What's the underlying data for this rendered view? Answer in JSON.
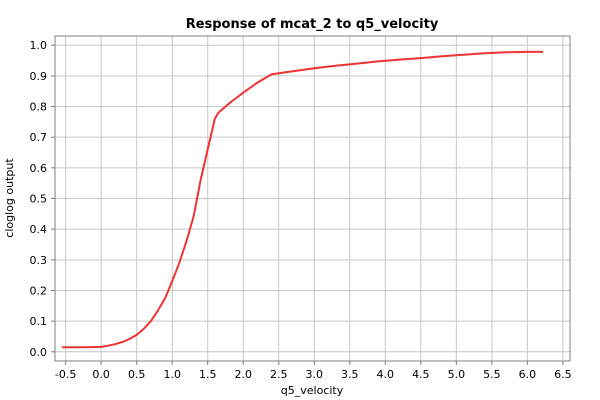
{
  "chart_data": {
    "type": "line",
    "title": "Response of mcat_2 to q5_velocity",
    "xlabel": "q5_velocity",
    "ylabel": "cloglog output",
    "xlim": [
      -0.65,
      6.6
    ],
    "ylim": [
      -0.03,
      1.03
    ],
    "xticks": [
      -0.5,
      0.0,
      0.5,
      1.0,
      1.5,
      2.0,
      2.5,
      3.0,
      3.5,
      4.0,
      4.5,
      5.0,
      5.5,
      6.0,
      6.5
    ],
    "yticks": [
      0.0,
      0.1,
      0.2,
      0.3,
      0.4,
      0.5,
      0.6,
      0.7,
      0.8,
      0.9,
      1.0
    ],
    "grid": true,
    "line_color": "#ee3333",
    "series": [
      {
        "x": [
          -0.55,
          -0.4,
          -0.2,
          0.0,
          0.1,
          0.2,
          0.3,
          0.4,
          0.5,
          0.6,
          0.7,
          0.8,
          0.9,
          1.0,
          1.1,
          1.2,
          1.3,
          1.35,
          1.4,
          1.5,
          1.6,
          1.65,
          1.8,
          2.0,
          2.2,
          2.4,
          2.6,
          2.8,
          3.0,
          3.3,
          3.6,
          3.9,
          4.2,
          4.5,
          4.8,
          5.1,
          5.4,
          5.7,
          6.0,
          6.22
        ],
        "y": [
          0.015,
          0.015,
          0.015,
          0.016,
          0.02,
          0.025,
          0.032,
          0.042,
          0.055,
          0.075,
          0.1,
          0.135,
          0.175,
          0.23,
          0.29,
          0.36,
          0.44,
          0.5,
          0.56,
          0.66,
          0.76,
          0.78,
          0.81,
          0.845,
          0.878,
          0.905,
          0.912,
          0.918,
          0.925,
          0.933,
          0.94,
          0.947,
          0.953,
          0.958,
          0.964,
          0.969,
          0.974,
          0.977,
          0.978,
          0.978
        ]
      }
    ]
  }
}
